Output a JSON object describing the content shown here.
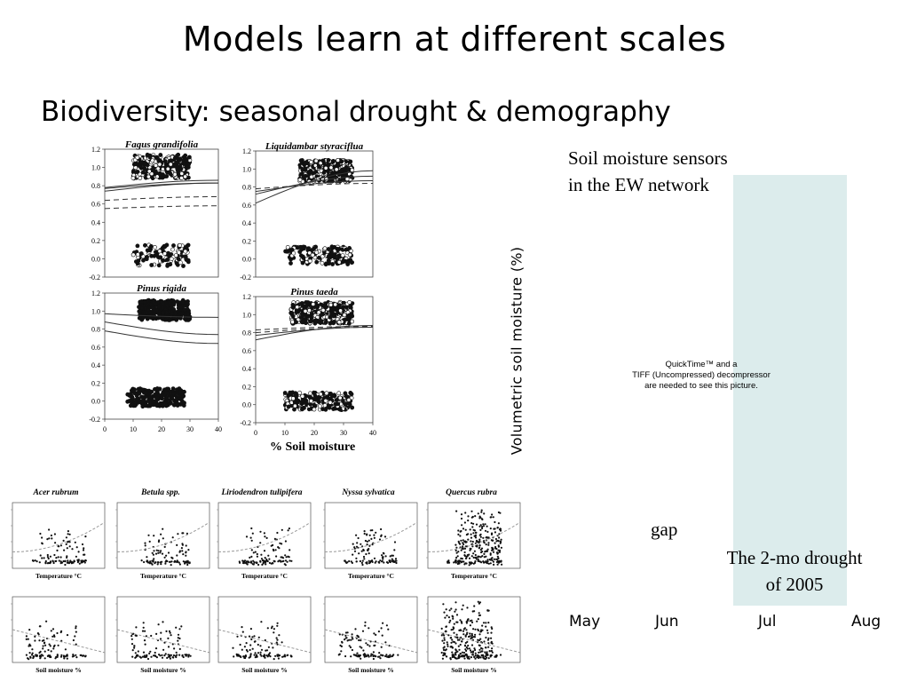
{
  "slide": {
    "title": "Models learn at different scales",
    "subtitle": "Biodiversity: seasonal drought & demography"
  },
  "right_panel": {
    "sensor_caption_line1": "Soil moisture sensors",
    "sensor_caption_line2": "in the EW network",
    "ylabel": "Volumetric soil moisture (%)",
    "quicktime_line1": "QuickTime™ and a",
    "quicktime_line2": "TIFF (Uncompressed) decompressor",
    "quicktime_line3": "are needed to see this picture.",
    "gap_label": "gap",
    "drought_label_line1": "The 2-mo drought",
    "drought_label_line2": "of 2005",
    "months": [
      "May",
      "Jun",
      "Jul",
      "Aug"
    ],
    "drought_band_color": "#dcecec"
  },
  "chart_data": [
    {
      "type": "scatter",
      "title": "Fagus grandifolia",
      "xlim": [
        0,
        40
      ],
      "ylim": [
        -0.2,
        1.2
      ],
      "yticks": [
        "1.2",
        "1.0",
        "0.8",
        "0.6",
        "0.4",
        "0.2",
        "0.0",
        "-0.2"
      ],
      "xticks": [],
      "clusters": [
        {
          "x": [
            10,
            30
          ],
          "y": [
            0.88,
            1.14
          ],
          "marker": "open-and-filled",
          "n": 300
        },
        {
          "x": [
            10,
            30
          ],
          "y": [
            -0.08,
            0.16
          ],
          "marker": "open-and-filled",
          "n": 110
        }
      ],
      "curves": [
        {
          "style": "solid",
          "y": [
            0.78,
            0.86
          ]
        },
        {
          "style": "solid",
          "y": [
            0.74,
            0.83
          ]
        },
        {
          "style": "solid",
          "y": [
            0.77,
            0.83
          ]
        },
        {
          "style": "dashed",
          "y": [
            0.64,
            0.68
          ]
        },
        {
          "style": "dashed",
          "y": [
            0.55,
            0.58
          ]
        }
      ]
    },
    {
      "type": "scatter",
      "title": "Liquidambar styraciflua",
      "xlim": [
        0,
        40
      ],
      "ylim": [
        -0.2,
        1.2
      ],
      "yticks": [
        "1.2",
        "1.0",
        "0.8",
        "0.6",
        "0.4",
        "0.2",
        "0.0",
        "-0.2"
      ],
      "xticks": [],
      "clusters": [
        {
          "x": [
            15,
            33
          ],
          "y": [
            0.86,
            1.1
          ],
          "marker": "open-and-filled",
          "n": 320
        },
        {
          "x": [
            10,
            33
          ],
          "y": [
            -0.06,
            0.14
          ],
          "marker": "open-and-filled",
          "n": 150
        }
      ],
      "curves": [
        {
          "style": "solid",
          "y": [
            0.62,
            0.98
          ]
        },
        {
          "style": "solid",
          "y": [
            0.72,
            0.92
          ]
        },
        {
          "style": "solid",
          "y": [
            0.75,
            0.87
          ]
        },
        {
          "style": "dashed",
          "y": [
            0.78,
            0.84
          ]
        }
      ]
    },
    {
      "type": "scatter",
      "title": "Pinus rigida",
      "xlim": [
        0,
        40
      ],
      "ylim": [
        -0.2,
        1.2
      ],
      "yticks": [
        "1.2",
        "1.0",
        "0.8",
        "0.6",
        "0.4",
        "0.2",
        "0.0",
        "-0.2"
      ],
      "xticks": [
        "0",
        "10",
        "20",
        "30",
        "40"
      ],
      "clusters": [
        {
          "x": [
            12,
            30
          ],
          "y": [
            0.9,
            1.12
          ],
          "marker": "filled",
          "n": 280
        },
        {
          "x": [
            8,
            28
          ],
          "y": [
            -0.06,
            0.14
          ],
          "marker": "filled",
          "n": 200
        }
      ],
      "curves": [
        {
          "style": "solid",
          "y": [
            0.97,
            0.93
          ]
        },
        {
          "style": "solid",
          "y": [
            0.88,
            0.74
          ]
        },
        {
          "style": "solid",
          "y": [
            0.78,
            0.64
          ]
        }
      ]
    },
    {
      "type": "scatter",
      "title": "Pinus taeda",
      "xlim": [
        0,
        40
      ],
      "ylim": [
        -0.2,
        1.2
      ],
      "yticks": [
        "1.2",
        "1.0",
        "0.8",
        "0.6",
        "0.4",
        "0.2",
        "0.0",
        "-0.2"
      ],
      "xticks": [
        "0",
        "10",
        "20",
        "30",
        "40"
      ],
      "xlabel": "% Soil moisture",
      "clusters": [
        {
          "x": [
            12,
            33
          ],
          "y": [
            0.9,
            1.14
          ],
          "marker": "open-and-filled",
          "n": 330
        },
        {
          "x": [
            10,
            33
          ],
          "y": [
            -0.06,
            0.14
          ],
          "marker": "open-and-filled",
          "n": 200
        }
      ],
      "curves": [
        {
          "style": "solid",
          "y": [
            0.72,
            0.88
          ]
        },
        {
          "style": "solid",
          "y": [
            0.77,
            0.86
          ]
        },
        {
          "style": "dashed",
          "y": [
            0.8,
            0.86
          ]
        },
        {
          "style": "dashed",
          "y": [
            0.83,
            0.87
          ]
        }
      ]
    }
  ],
  "small_multiples": {
    "species": [
      "Acer rubrum",
      "Betula spp.",
      "Liriodendron tulipifera",
      "Nyssa sylvatica",
      "Quercus rubra"
    ],
    "row_xlabels": [
      "Temperature °C",
      "Soil moisture %"
    ]
  }
}
